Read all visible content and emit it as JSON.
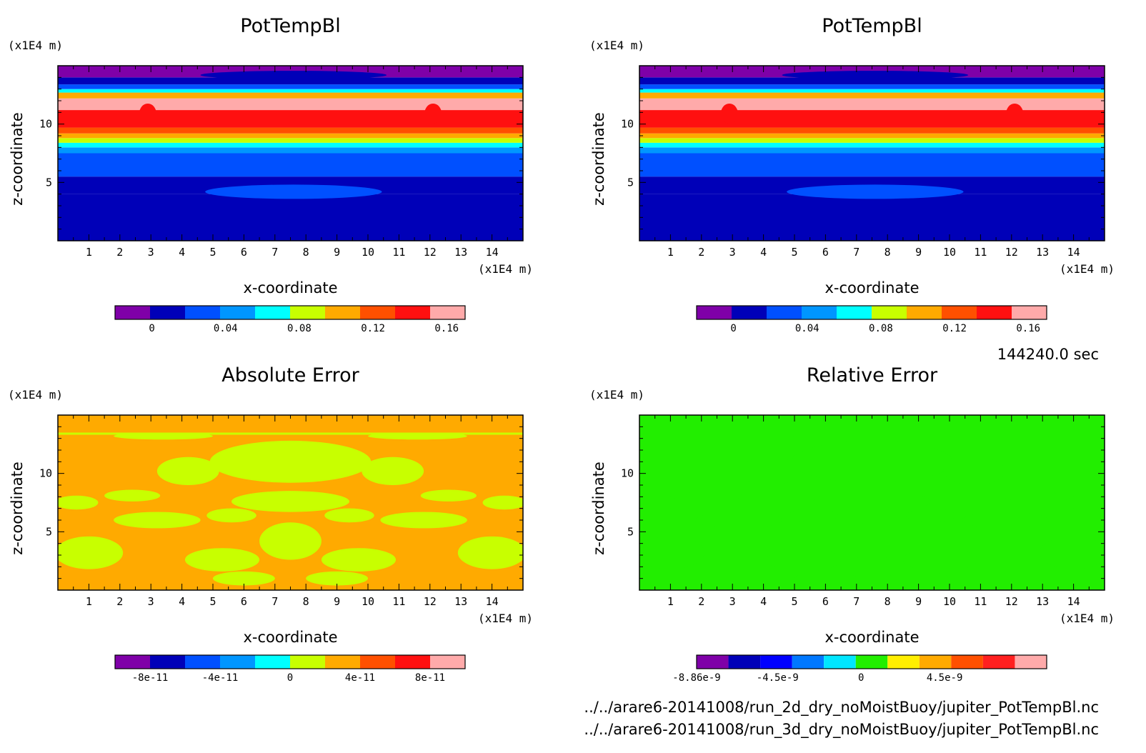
{
  "footer": {
    "time": "144240.0 sec",
    "file_1": "../../arare6-20141008/run_2d_dry_noMoistBuoy/jupiter_PotTempBl.nc",
    "file_2": "../../arare6-20141008/run_3d_dry_noMoistBuoy/jupiter_PotTempBl.nc"
  },
  "chart_data": [
    {
      "type": "heatmap",
      "title": "PotTempBl",
      "xlabel": "x-coordinate",
      "ylabel": "z-coordinate",
      "x_unit": "(x1E4 m)",
      "y_unit": "(x1E4 m)",
      "xlim": [
        0,
        15
      ],
      "ylim": [
        0,
        15
      ],
      "xticks": [
        "1",
        "2",
        "3",
        "4",
        "5",
        "6",
        "7",
        "8",
        "9",
        "10",
        "11",
        "12",
        "13",
        "14"
      ],
      "yticks": [
        "5",
        "10"
      ],
      "colorbar": {
        "colors": [
          "#7f00a8",
          "#0000b8",
          "#0050ff",
          "#0096ff",
          "#00ffff",
          "#c8ff00",
          "#ffaa00",
          "#ff5000",
          "#ff1010",
          "#ffaaaa"
        ],
        "tick_labels": [
          "0",
          "0.04",
          "0.08",
          "0.12",
          "0.16"
        ],
        "tick_values": [
          0,
          0.04,
          0.08,
          0.12,
          0.16
        ],
        "range": [
          -0.02,
          0.17
        ]
      },
      "bands": [
        {
          "z_from": 0.0,
          "z_to": 4.0,
          "value": 0.0
        },
        {
          "z_from": 4.0,
          "z_to": 5.5,
          "value": 0.01
        },
        {
          "z_from": 5.5,
          "z_to": 7.5,
          "value": 0.03
        },
        {
          "z_from": 7.5,
          "z_to": 8.0,
          "value": 0.05
        },
        {
          "z_from": 8.0,
          "z_to": 8.4,
          "value": 0.07
        },
        {
          "z_from": 8.4,
          "z_to": 8.8,
          "value": 0.09
        },
        {
          "z_from": 8.8,
          "z_to": 9.2,
          "value": 0.11
        },
        {
          "z_from": 9.2,
          "z_to": 9.7,
          "value": 0.13
        },
        {
          "z_from": 9.7,
          "z_to": 11.2,
          "value": 0.15
        },
        {
          "z_from": 11.2,
          "z_to": 12.2,
          "value": 0.17
        },
        {
          "z_from": 12.2,
          "z_to": 12.7,
          "value": 0.11
        },
        {
          "z_from": 12.7,
          "z_to": 13.0,
          "value": 0.07
        },
        {
          "z_from": 13.0,
          "z_to": 13.4,
          "value": 0.03
        },
        {
          "z_from": 13.4,
          "z_to": 14.0,
          "value": 0.0
        },
        {
          "z_from": 14.0,
          "z_to": 15.0,
          "value": -0.02
        }
      ]
    },
    {
      "type": "heatmap",
      "title": "PotTempBl",
      "xlabel": "x-coordinate",
      "ylabel": "z-coordinate",
      "x_unit": "(x1E4 m)",
      "y_unit": "(x1E4 m)",
      "xlim": [
        0,
        15
      ],
      "ylim": [
        0,
        15
      ],
      "xticks": [
        "1",
        "2",
        "3",
        "4",
        "5",
        "6",
        "7",
        "8",
        "9",
        "10",
        "11",
        "12",
        "13",
        "14"
      ],
      "yticks": [
        "5",
        "10"
      ],
      "colorbar": {
        "colors": [
          "#7f00a8",
          "#0000b8",
          "#0050ff",
          "#0096ff",
          "#00ffff",
          "#c8ff00",
          "#ffaa00",
          "#ff5000",
          "#ff1010",
          "#ffaaaa"
        ],
        "tick_labels": [
          "0",
          "0.04",
          "0.08",
          "0.12",
          "0.16"
        ],
        "tick_values": [
          0,
          0.04,
          0.08,
          0.12,
          0.16
        ],
        "range": [
          -0.02,
          0.17
        ]
      },
      "bands": [
        {
          "z_from": 0.0,
          "z_to": 4.0,
          "value": 0.0
        },
        {
          "z_from": 4.0,
          "z_to": 5.5,
          "value": 0.01
        },
        {
          "z_from": 5.5,
          "z_to": 7.5,
          "value": 0.03
        },
        {
          "z_from": 7.5,
          "z_to": 8.0,
          "value": 0.05
        },
        {
          "z_from": 8.0,
          "z_to": 8.4,
          "value": 0.07
        },
        {
          "z_from": 8.4,
          "z_to": 8.8,
          "value": 0.09
        },
        {
          "z_from": 8.8,
          "z_to": 9.2,
          "value": 0.11
        },
        {
          "z_from": 9.2,
          "z_to": 9.7,
          "value": 0.13
        },
        {
          "z_from": 9.7,
          "z_to": 11.2,
          "value": 0.15
        },
        {
          "z_from": 11.2,
          "z_to": 12.2,
          "value": 0.17
        },
        {
          "z_from": 12.2,
          "z_to": 12.7,
          "value": 0.11
        },
        {
          "z_from": 12.7,
          "z_to": 13.0,
          "value": 0.07
        },
        {
          "z_from": 13.0,
          "z_to": 13.4,
          "value": 0.03
        },
        {
          "z_from": 13.4,
          "z_to": 14.0,
          "value": 0.0
        },
        {
          "z_from": 14.0,
          "z_to": 15.0,
          "value": -0.02
        }
      ]
    },
    {
      "type": "heatmap",
      "title": "Absolute Error",
      "xlabel": "x-coordinate",
      "ylabel": "z-coordinate",
      "x_unit": "(x1E4 m)",
      "y_unit": "(x1E4 m)",
      "xlim": [
        0,
        15
      ],
      "ylim": [
        0,
        15
      ],
      "xticks": [
        "1",
        "2",
        "3",
        "4",
        "5",
        "6",
        "7",
        "8",
        "9",
        "10",
        "11",
        "12",
        "13",
        "14"
      ],
      "yticks": [
        "5",
        "10"
      ],
      "colorbar": {
        "colors": [
          "#7f00a8",
          "#0000b8",
          "#0050ff",
          "#0096ff",
          "#00ffff",
          "#c8ff00",
          "#ffaa00",
          "#ff5000",
          "#ff1010",
          "#ffaaaa"
        ],
        "tick_labels": [
          "-8e-11",
          "-4e-11",
          "0",
          "4e-11",
          "8e-11"
        ],
        "tick_values": [
          -8e-11,
          -4e-11,
          0,
          4e-11,
          8e-11
        ],
        "range": [
          -1e-10,
          1e-10
        ]
      },
      "pattern": {
        "low_value": 0,
        "high_value": 2e-11
      }
    },
    {
      "type": "heatmap",
      "title": "Relative Error",
      "xlabel": "x-coordinate",
      "ylabel": "z-coordinate",
      "x_unit": "(x1E4 m)",
      "y_unit": "(x1E4 m)",
      "xlim": [
        0,
        15
      ],
      "ylim": [
        0,
        15
      ],
      "xticks": [
        "1",
        "2",
        "3",
        "4",
        "5",
        "6",
        "7",
        "8",
        "9",
        "10",
        "11",
        "12",
        "13",
        "14"
      ],
      "yticks": [
        "5",
        "10"
      ],
      "colorbar": {
        "colors": [
          "#7f00a8",
          "#0000b8",
          "#0000ff",
          "#0078ff",
          "#00e6ff",
          "#22ee00",
          "#ffee00",
          "#ffaa00",
          "#ff5000",
          "#ff2020",
          "#ffaaaa"
        ],
        "tick_labels": [
          "-8.86e-9",
          "-4.5e-9",
          "0",
          "4.5e-9"
        ],
        "tick_values": [
          -8.86e-09,
          -4.5e-09,
          0,
          4.5e-09
        ],
        "range": [
          -8.86e-09,
          1e-08
        ]
      },
      "pattern": {
        "low_value": 0,
        "high_value": 1e-09
      }
    }
  ]
}
